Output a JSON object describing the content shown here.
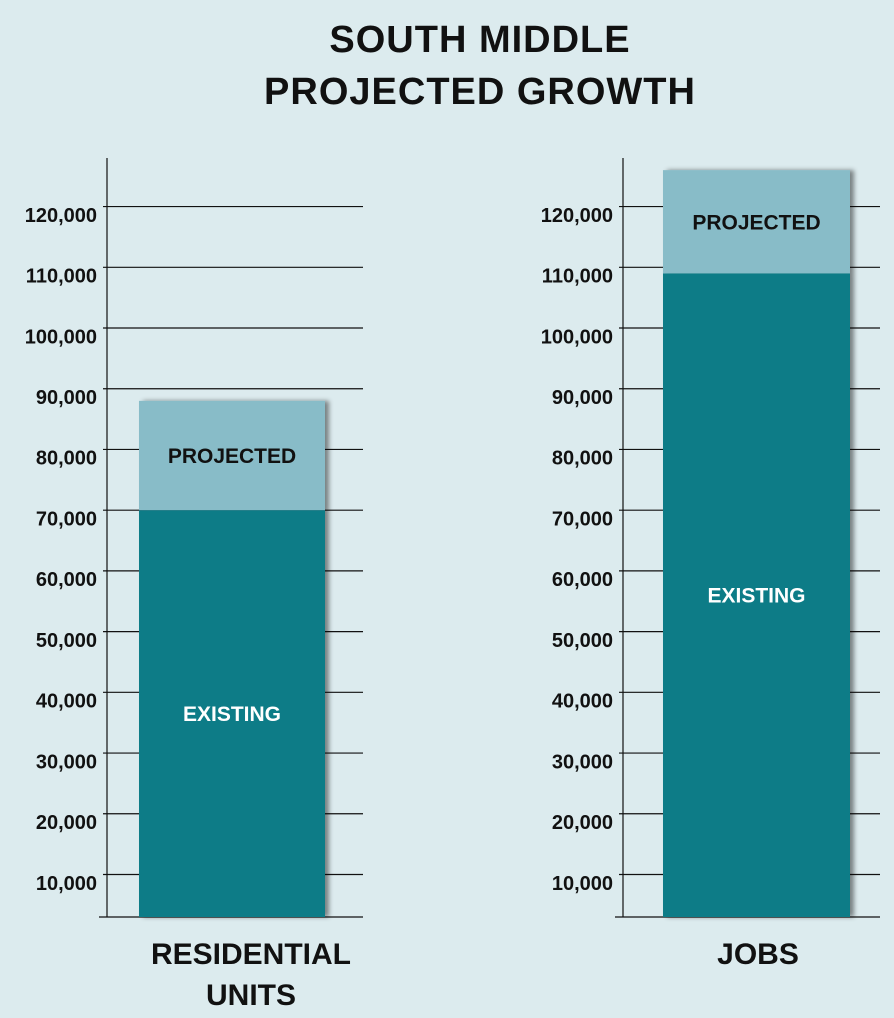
{
  "title": "SOUTH MIDDLE PROJECTED GROWTH",
  "chart_data": [
    {
      "type": "bar",
      "stacked": true,
      "categories": [
        "RESIDENTIAL UNITS"
      ],
      "series": [
        {
          "name": "EXISTING",
          "color": "#0e7b87",
          "values": [
            67000
          ]
        },
        {
          "name": "PROJECTED",
          "color": "#88bcc8",
          "values": [
            18000
          ]
        }
      ],
      "ylim": [
        3000,
        128000
      ],
      "yticks": [
        {
          "value": 10000,
          "label": "10,000"
        },
        {
          "value": 20000,
          "label": "20,000"
        },
        {
          "value": 30000,
          "label": "30,000"
        },
        {
          "value": 40000,
          "label": "40,000"
        },
        {
          "value": 50000,
          "label": "50,000"
        },
        {
          "value": 60000,
          "label": "60,000"
        },
        {
          "value": 70000,
          "label": "70,000"
        },
        {
          "value": 80000,
          "label": "80,000"
        },
        {
          "value": 90000,
          "label": "90,000"
        },
        {
          "value": 100000,
          "label": "100,000"
        },
        {
          "value": 110000,
          "label": "110,000"
        },
        {
          "value": 120000,
          "label": "120,000"
        }
      ],
      "grid": true
    },
    {
      "type": "bar",
      "stacked": true,
      "categories": [
        "JOBS"
      ],
      "series": [
        {
          "name": "EXISTING",
          "color": "#0e7b87",
          "values": [
            106000
          ]
        },
        {
          "name": "PROJECTED",
          "color": "#88bcc8",
          "values": [
            17000
          ]
        }
      ],
      "ylim": [
        3000,
        128000
      ],
      "yticks": [
        {
          "value": 10000,
          "label": "10,000"
        },
        {
          "value": 20000,
          "label": "20,000"
        },
        {
          "value": 30000,
          "label": "30,000"
        },
        {
          "value": 40000,
          "label": "40,000"
        },
        {
          "value": 50000,
          "label": "50,000"
        },
        {
          "value": 60000,
          "label": "60,000"
        },
        {
          "value": 70000,
          "label": "70,000"
        },
        {
          "value": 80000,
          "label": "80,000"
        },
        {
          "value": 90000,
          "label": "90,000"
        },
        {
          "value": 100000,
          "label": "100,000"
        },
        {
          "value": 110000,
          "label": "110,000"
        },
        {
          "value": 120000,
          "label": "120,000"
        }
      ],
      "grid": true
    }
  ]
}
